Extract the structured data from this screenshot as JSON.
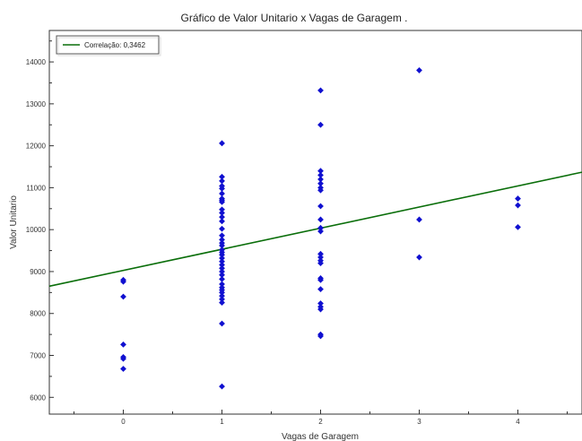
{
  "chart_data": {
    "type": "scatter",
    "title": "Gráfico de Valor Unitario x Vagas de Garagem .",
    "xlabel": "Vagas de Garagem",
    "ylabel": "Valor Unitario",
    "xlim": [
      -0.75,
      4.65
    ],
    "ylim": [
      5600,
      14750
    ],
    "x_ticks": [
      0,
      1,
      2,
      3,
      4
    ],
    "y_ticks": [
      6000,
      7000,
      8000,
      9000,
      10000,
      11000,
      12000,
      13000,
      14000
    ],
    "grid": false,
    "legend_position": "top-left",
    "colors": {
      "points": "#1010d0",
      "trend": "#0a6e0a"
    },
    "trend_line": {
      "label": "Correlação: 0,3462",
      "points": [
        [
          -0.75,
          8650
        ],
        [
          4.65,
          11370
        ]
      ]
    },
    "points": [
      [
        0,
        8800
      ],
      [
        0,
        8760
      ],
      [
        0,
        8400
      ],
      [
        0,
        7260
      ],
      [
        0,
        6960
      ],
      [
        0,
        6920
      ],
      [
        0,
        6680
      ],
      [
        1,
        12060
      ],
      [
        1,
        11260
      ],
      [
        1,
        11160
      ],
      [
        1,
        11040
      ],
      [
        1,
        10980
      ],
      [
        1,
        10860
      ],
      [
        1,
        10740
      ],
      [
        1,
        10700
      ],
      [
        1,
        10660
      ],
      [
        1,
        10480
      ],
      [
        1,
        10400
      ],
      [
        1,
        10300
      ],
      [
        1,
        10200
      ],
      [
        1,
        10020
      ],
      [
        1,
        9860
      ],
      [
        1,
        9760
      ],
      [
        1,
        9680
      ],
      [
        1,
        9620
      ],
      [
        1,
        9520
      ],
      [
        1,
        9460
      ],
      [
        1,
        9400
      ],
      [
        1,
        9320
      ],
      [
        1,
        9240
      ],
      [
        1,
        9160
      ],
      [
        1,
        9080
      ],
      [
        1,
        9000
      ],
      [
        1,
        8920
      ],
      [
        1,
        8820
      ],
      [
        1,
        8700
      ],
      [
        1,
        8620
      ],
      [
        1,
        8560
      ],
      [
        1,
        8500
      ],
      [
        1,
        8420
      ],
      [
        1,
        8340
      ],
      [
        1,
        8260
      ],
      [
        1,
        7760
      ],
      [
        1,
        6260
      ],
      [
        2,
        13320
      ],
      [
        2,
        12500
      ],
      [
        2,
        11400
      ],
      [
        2,
        11300
      ],
      [
        2,
        11200
      ],
      [
        2,
        11100
      ],
      [
        2,
        11000
      ],
      [
        2,
        10940
      ],
      [
        2,
        10560
      ],
      [
        2,
        10240
      ],
      [
        2,
        10040
      ],
      [
        2,
        9960
      ],
      [
        2,
        9420
      ],
      [
        2,
        9340
      ],
      [
        2,
        9260
      ],
      [
        2,
        9200
      ],
      [
        2,
        8840
      ],
      [
        2,
        8800
      ],
      [
        2,
        8580
      ],
      [
        2,
        8240
      ],
      [
        2,
        8160
      ],
      [
        2,
        8100
      ],
      [
        2,
        7500
      ],
      [
        2,
        7460
      ],
      [
        3,
        13800
      ],
      [
        3,
        10240
      ],
      [
        3,
        9340
      ],
      [
        4,
        10740
      ],
      [
        4,
        10580
      ],
      [
        4,
        10060
      ]
    ]
  }
}
